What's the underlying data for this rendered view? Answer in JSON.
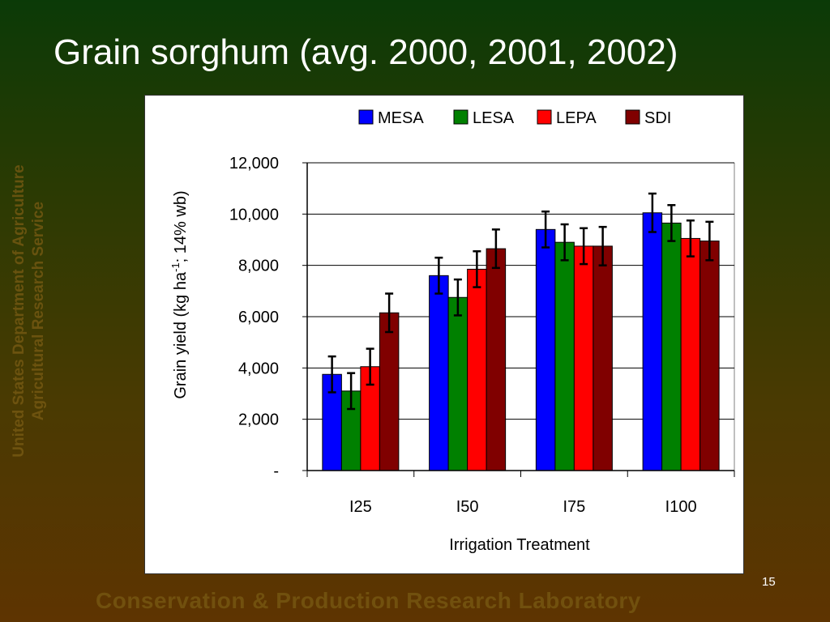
{
  "slide": {
    "title": "Grain sorghum (avg. 2000, 2001, 2002)",
    "side_line1": "United States Department of Agriculture",
    "side_line2": "Agricultural Research Service",
    "footer": "Conservation & Production Research Laboratory",
    "page_number": "15"
  },
  "chart_data": {
    "type": "bar",
    "categories": [
      "I25",
      "I50",
      "I75",
      "I100"
    ],
    "series": [
      {
        "name": "MESA",
        "color": "#0000ff",
        "values": [
          3750,
          7600,
          9400,
          10050
        ],
        "error": [
          700,
          700,
          700,
          750
        ]
      },
      {
        "name": "LESA",
        "color": "#008000",
        "values": [
          3100,
          6750,
          8900,
          9650
        ],
        "error": [
          700,
          700,
          700,
          700
        ]
      },
      {
        "name": "LEPA",
        "color": "#ff0000",
        "values": [
          4050,
          7850,
          8750,
          9050
        ],
        "error": [
          700,
          700,
          700,
          700
        ]
      },
      {
        "name": "SDI",
        "color": "#800000",
        "values": [
          6150,
          8650,
          8750,
          8950
        ],
        "error": [
          750,
          750,
          750,
          750
        ]
      }
    ],
    "ylim": [
      0,
      12000
    ],
    "yticks": [
      {
        "value": 0,
        "label": "-"
      },
      {
        "value": 2000,
        "label": "2,000"
      },
      {
        "value": 4000,
        "label": "4,000"
      },
      {
        "value": 6000,
        "label": "6,000"
      },
      {
        "value": 8000,
        "label": "8,000"
      },
      {
        "value": 10000,
        "label": "10,000"
      },
      {
        "value": 12000,
        "label": "12,000"
      }
    ],
    "xlabel": "Irrigation Treatment",
    "ylabel": "Grain yield (kg ha-1; 14% wb)",
    "ylabel_parts": {
      "before": "Grain yield (kg ha",
      "sup": "-1",
      "after": "; 14% wb)"
    },
    "grid": true,
    "legend_position": "top"
  }
}
